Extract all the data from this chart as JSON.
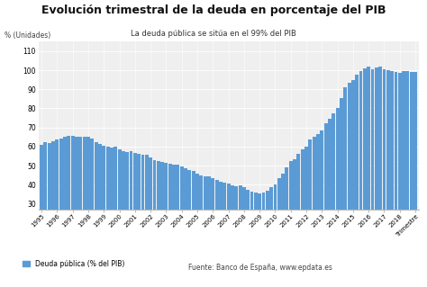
{
  "title": "Evolución trimestral de la deuda en porcentaje del PIB",
  "subtitle": "La deuda pública se sitúa en el 99% del PIB",
  "ylabel": "% (Unidades)",
  "bar_color": "#5b9bd5",
  "ylim": [
    27,
    115
  ],
  "yticks": [
    30,
    40,
    50,
    60,
    70,
    80,
    90,
    100,
    110
  ],
  "legend_label": "Deuda pública (% del PIB)",
  "source_text": "Fuente: Banco de España, www.epdata.es",
  "background_color": "#ffffff",
  "plot_bg_color": "#efefef",
  "values": [
    61.0,
    62.5,
    62.0,
    63.0,
    63.5,
    64.0,
    65.0,
    65.5,
    65.5,
    65.0,
    65.0,
    65.0,
    65.0,
    64.0,
    62.5,
    61.5,
    60.5,
    60.0,
    59.5,
    60.0,
    58.5,
    57.5,
    57.0,
    57.5,
    56.5,
    56.0,
    55.5,
    55.5,
    54.5,
    53.0,
    52.5,
    52.0,
    51.5,
    51.0,
    50.5,
    50.5,
    49.5,
    48.5,
    47.5,
    47.0,
    46.0,
    45.0,
    44.5,
    44.5,
    43.5,
    42.5,
    41.5,
    41.0,
    40.5,
    39.5,
    39.0,
    39.5,
    38.5,
    37.5,
    36.5,
    36.0,
    35.5,
    36.0,
    37.0,
    38.5,
    40.0,
    43.5,
    46.0,
    49.0,
    52.5,
    53.5,
    56.0,
    58.5,
    60.0,
    63.5,
    65.0,
    66.5,
    68.5,
    72.0,
    74.5,
    77.5,
    80.0,
    85.5,
    91.0,
    93.5,
    95.0,
    97.5,
    99.5,
    101.0,
    102.0,
    100.5,
    101.5,
    102.0,
    100.5,
    100.0,
    99.5,
    99.0,
    98.5,
    99.5,
    99.5,
    99.0,
    99.0
  ],
  "x_tick_labels": [
    "1995",
    "1996",
    "1997",
    "1998",
    "1999",
    "2000",
    "2001",
    "2002",
    "2003",
    "2004",
    "2005",
    "2006",
    "2007",
    "2008",
    "2009",
    "2010",
    "2011",
    "2012",
    "2013",
    "2014",
    "2015",
    "2016",
    "2017",
    "2018",
    "Trimestre"
  ],
  "x_tick_positions": [
    0,
    4,
    8,
    12,
    16,
    20,
    24,
    28,
    32,
    36,
    40,
    44,
    48,
    52,
    56,
    60,
    64,
    68,
    72,
    76,
    80,
    84,
    88,
    92,
    96
  ]
}
